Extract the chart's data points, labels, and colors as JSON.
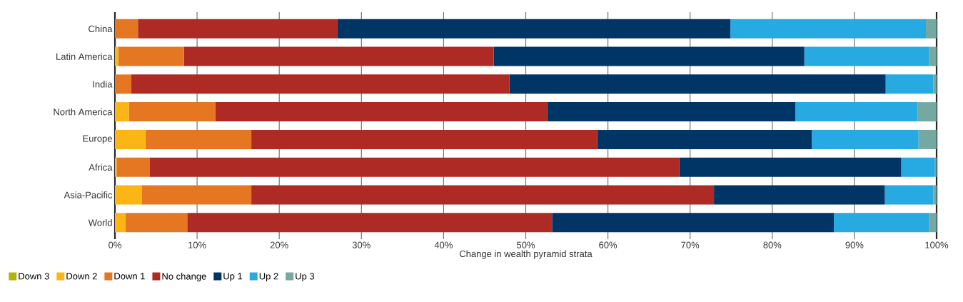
{
  "chart_data": {
    "type": "bar",
    "orientation": "horizontal",
    "stacked": true,
    "xlabel": "Change in wealth pyramid strata",
    "categories": [
      "China",
      "Latin America",
      "India",
      "North America",
      "Europe",
      "Africa",
      "Asia-Pacific",
      "World"
    ],
    "series": [
      {
        "name": "Down 3",
        "color": "#b3b20b",
        "values": [
          0,
          0,
          0,
          0,
          0,
          0,
          0,
          0
        ]
      },
      {
        "name": "Down 2",
        "color": "#fbb515",
        "values": [
          0,
          0.4,
          0,
          1.7,
          3.7,
          0.2,
          3.3,
          1.3
        ]
      },
      {
        "name": "Down 1",
        "color": "#e67722",
        "values": [
          2.8,
          8.0,
          2.0,
          10.5,
          12.9,
          4.0,
          13.3,
          7.5
        ]
      },
      {
        "name": "No change",
        "color": "#ad2b24",
        "values": [
          24.3,
          37.7,
          46.0,
          40.4,
          42.1,
          64.5,
          56.3,
          44.4
        ]
      },
      {
        "name": "Up 1",
        "color": "#003566",
        "values": [
          47.8,
          37.8,
          45.8,
          30.2,
          26.1,
          27.0,
          20.8,
          34.3
        ]
      },
      {
        "name": "Up 2",
        "color": "#27a9e1",
        "values": [
          23.8,
          15.2,
          5.8,
          14.9,
          13.0,
          4.1,
          5.9,
          11.6
        ]
      },
      {
        "name": "Up 3",
        "color": "#74a8a0",
        "values": [
          1.3,
          0.9,
          0.4,
          2.3,
          2.2,
          0.2,
          0.4,
          0.9
        ]
      }
    ],
    "xlim": [
      0,
      100
    ],
    "xticks": [
      {
        "value": 0,
        "label": "0%"
      },
      {
        "value": 10,
        "label": "10%"
      },
      {
        "value": 20,
        "label": "20%"
      },
      {
        "value": 30,
        "label": "30%"
      },
      {
        "value": 40,
        "label": "40%"
      },
      {
        "value": 50,
        "label": "50%"
      },
      {
        "value": 60,
        "label": "60%"
      },
      {
        "value": 70,
        "label": "70%"
      },
      {
        "value": 80,
        "label": "80%"
      },
      {
        "value": 90,
        "label": "90%"
      },
      {
        "value": 100,
        "label": "100%"
      }
    ],
    "grid": "x",
    "legend": "bottom left"
  }
}
